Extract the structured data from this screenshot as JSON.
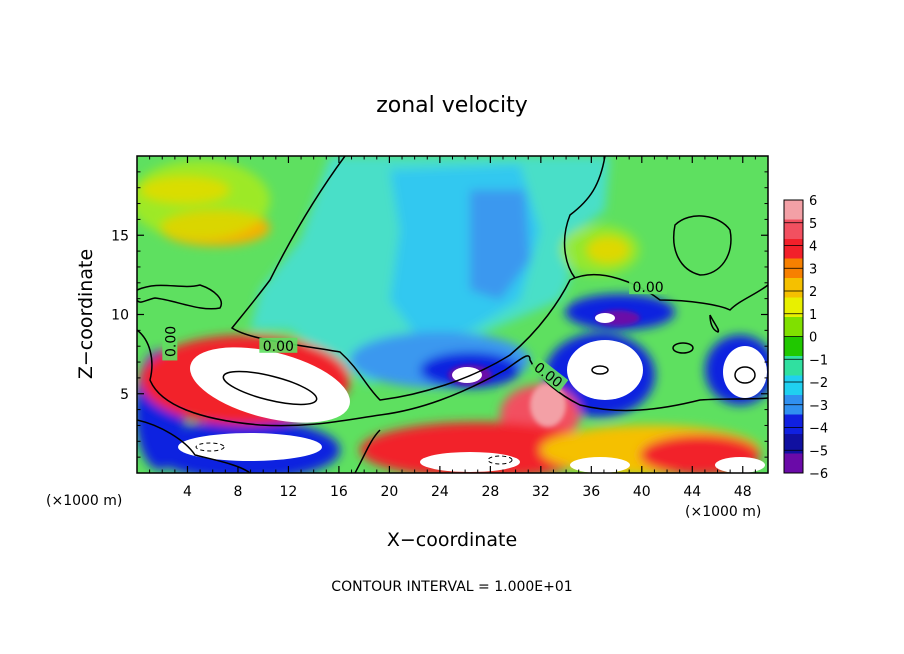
{
  "chart_data": {
    "type": "heatmap",
    "title": "zonal velocity",
    "xlabel": "X−coordinate",
    "ylabel": "Z−coordinate",
    "x_scale_note": "(×1000 m)",
    "y_scale_note": "(×1000 m)",
    "footer": "CONTOUR INTERVAL = 1.000E+01",
    "xlim": [
      0,
      50
    ],
    "ylim": [
      0,
      20
    ],
    "x_ticks": [
      4,
      8,
      12,
      16,
      20,
      24,
      28,
      32,
      36,
      40,
      44,
      48
    ],
    "y_ticks": [
      5,
      10,
      15
    ],
    "colorbar": {
      "levels": [
        "6",
        "5",
        "4",
        "3",
        "2",
        "1",
        "0",
        "−1",
        "−2",
        "−3",
        "−4",
        "−5",
        "−6"
      ],
      "colors": [
        "#f3a0a6",
        "#f25060",
        "#f2202a",
        "#f78000",
        "#f5c000",
        "#e8f000",
        "#80e000",
        "#20c800",
        "#30e0a0",
        "#20d0f0",
        "#3090f0",
        "#1020e0",
        "#1010a0",
        "#6a0aa8"
      ]
    },
    "contour_labels": [
      {
        "text": "0.00",
        "x": 2.8,
        "y": 8.3
      },
      {
        "text": "0.00",
        "x": 11.2,
        "y": 7.9
      },
      {
        "text": "0.00",
        "x": 32.5,
        "y": 6.1
      },
      {
        "text": "0.00",
        "x": 40.5,
        "y": 11.6
      }
    ]
  }
}
